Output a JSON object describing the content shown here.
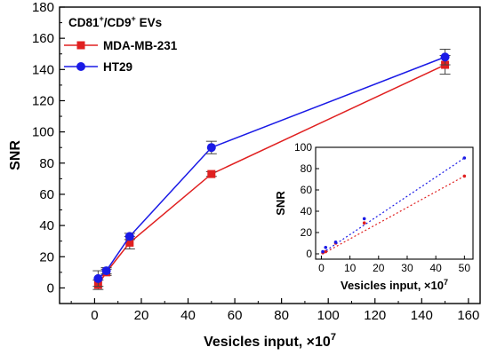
{
  "chart_data": [
    {
      "type": "line",
      "xlabel_main": "Vesicles input, ×10",
      "xlabel_exp": "7",
      "ylabel": "SNR",
      "xlim": [
        -15,
        165
      ],
      "ylim": [
        -10,
        180
      ],
      "x_ticks": [
        0,
        20,
        40,
        60,
        80,
        100,
        120,
        140,
        160
      ],
      "y_ticks": [
        0,
        20,
        40,
        60,
        80,
        100,
        120,
        140,
        160,
        180
      ],
      "legend": {
        "title_parts": [
          "CD81",
          "+",
          "/CD9",
          "+",
          " EVs"
        ],
        "position": "top-left"
      },
      "series": [
        {
          "name": "MDA-MB-231",
          "color": "#e02020",
          "marker": "square",
          "x": [
            1.5,
            5,
            15,
            50,
            150
          ],
          "y": [
            2,
            10,
            29,
            73,
            143
          ],
          "err": [
            3,
            2,
            4,
            1.5,
            6
          ]
        },
        {
          "name": "HT29",
          "color": "#1a1ae6",
          "marker": "circle",
          "x": [
            1.5,
            5,
            15,
            50,
            150
          ],
          "y": [
            6,
            11,
            33,
            90,
            148
          ],
          "err": [
            5,
            2,
            2,
            4,
            5
          ]
        }
      ]
    },
    {
      "type": "scatter",
      "inset": true,
      "xlabel_main": "Vesicles input, ×10",
      "xlabel_exp": "7",
      "ylabel": "SNR",
      "xlim": [
        -2,
        53
      ],
      "ylim": [
        -5,
        100
      ],
      "x_ticks": [
        0,
        10,
        20,
        30,
        40,
        50
      ],
      "y_ticks": [
        0,
        20,
        40,
        60,
        80,
        100
      ],
      "series": [
        {
          "name": "MDA-MB-231",
          "color": "#e02020",
          "x": [
            0.5,
            1.5,
            5,
            15,
            50
          ],
          "y": [
            1,
            2,
            10,
            29,
            73
          ],
          "trend": [
            0,
            73
          ]
        },
        {
          "name": "HT29",
          "color": "#1a1ae6",
          "x": [
            0.5,
            1.5,
            5,
            15,
            50
          ],
          "y": [
            2,
            6,
            11,
            33,
            90
          ],
          "trend": [
            1,
            90
          ]
        }
      ]
    }
  ]
}
